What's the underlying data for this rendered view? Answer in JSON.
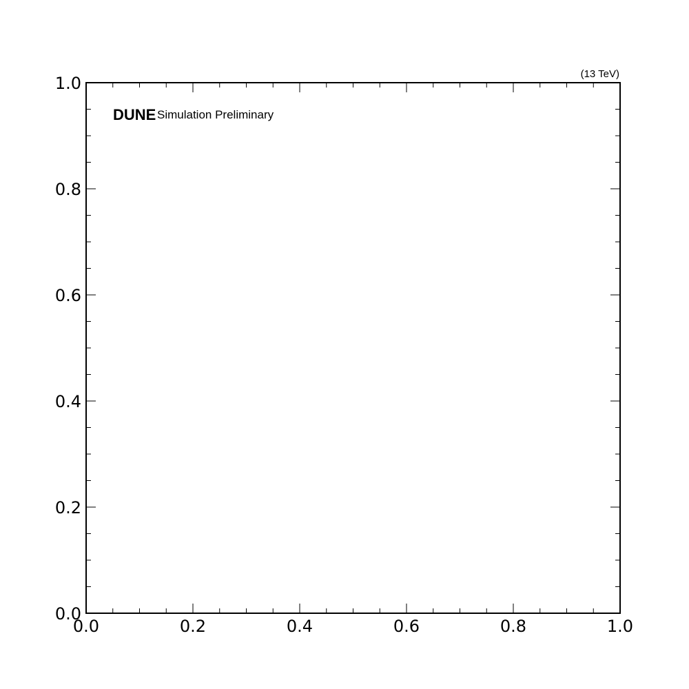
{
  "chart_data": {
    "type": "scatter",
    "series": [],
    "xlabel": "",
    "ylabel": "",
    "xlim": [
      0.0,
      1.0
    ],
    "ylim": [
      0.0,
      1.0
    ],
    "xticks": [
      "0.0",
      "0.2",
      "0.4",
      "0.6",
      "0.8",
      "1.0"
    ],
    "yticks": [
      "0.0",
      "0.2",
      "0.4",
      "0.6",
      "0.8",
      "1.0"
    ],
    "grid": false,
    "experiment_label": "DUNE",
    "status_label": "Simulation Preliminary",
    "lumi_label": "(13 TeV)"
  }
}
